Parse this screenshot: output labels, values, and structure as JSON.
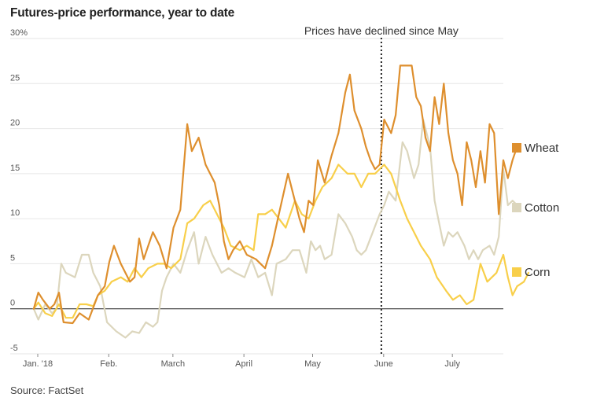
{
  "chart_data": {
    "type": "line",
    "title": "Futures-price performance, year to date",
    "source": "Source: FactSet",
    "ylim": [
      -5,
      30
    ],
    "xlim": [
      "2018-01-01",
      "2018-07-26"
    ],
    "y_ticks": [
      {
        "value": 30,
        "label": "30%"
      },
      {
        "value": 25,
        "label": "25"
      },
      {
        "value": 20,
        "label": "20"
      },
      {
        "value": 15,
        "label": "15"
      },
      {
        "value": 10,
        "label": "10"
      },
      {
        "value": 5,
        "label": "5"
      },
      {
        "value": 0,
        "label": "0"
      },
      {
        "value": -5,
        "label": "-5"
      }
    ],
    "x_ticks": [
      {
        "date": "2018-01-01",
        "label": "Jan. '18"
      },
      {
        "date": "2018-02-01",
        "label": "Feb."
      },
      {
        "date": "2018-03-01",
        "label": "March"
      },
      {
        "date": "2018-04-01",
        "label": "April"
      },
      {
        "date": "2018-05-01",
        "label": "May"
      },
      {
        "date": "2018-06-01",
        "label": "June"
      },
      {
        "date": "2018-07-01",
        "label": "July"
      }
    ],
    "grid": "horizontal",
    "legend_placement": "right",
    "annotation": {
      "date": "2018-05-31",
      "text": "Prices have declined since May"
    },
    "series": [
      {
        "name": "Wheat",
        "color": "#de8f2e",
        "points": [
          [
            "2018-01-02",
            0
          ],
          [
            "2018-01-04",
            1.8
          ],
          [
            "2018-01-06",
            1
          ],
          [
            "2018-01-09",
            0
          ],
          [
            "2018-01-11",
            0.5
          ],
          [
            "2018-01-13",
            1.8
          ],
          [
            "2018-01-15",
            -1.5
          ],
          [
            "2018-01-19",
            -1.6
          ],
          [
            "2018-01-22",
            -0.5
          ],
          [
            "2018-01-26",
            -1.2
          ],
          [
            "2018-01-30",
            1.5
          ],
          [
            "2018-02-02",
            2.5
          ],
          [
            "2018-02-04",
            5.2
          ],
          [
            "2018-02-06",
            7
          ],
          [
            "2018-02-09",
            5
          ],
          [
            "2018-02-13",
            3
          ],
          [
            "2018-02-15",
            3.5
          ],
          [
            "2018-02-17",
            7.8
          ],
          [
            "2018-02-19",
            5.5
          ],
          [
            "2018-02-21",
            7
          ],
          [
            "2018-02-23",
            8.5
          ],
          [
            "2018-02-26",
            7
          ],
          [
            "2018-03-01",
            4.5
          ],
          [
            "2018-03-04",
            9
          ],
          [
            "2018-03-07",
            11
          ],
          [
            "2018-03-10",
            20.5
          ],
          [
            "2018-03-12",
            17.5
          ],
          [
            "2018-03-15",
            19
          ],
          [
            "2018-03-18",
            16
          ],
          [
            "2018-03-20",
            15
          ],
          [
            "2018-03-22",
            14
          ],
          [
            "2018-03-24",
            11.5
          ],
          [
            "2018-03-26",
            7.5
          ],
          [
            "2018-03-28",
            5.5
          ],
          [
            "2018-03-30",
            6.5
          ],
          [
            "2018-04-02",
            7.5
          ],
          [
            "2018-04-05",
            6
          ],
          [
            "2018-04-09",
            5.5
          ],
          [
            "2018-04-13",
            4.5
          ],
          [
            "2018-04-16",
            7
          ],
          [
            "2018-04-19",
            10.5
          ],
          [
            "2018-04-23",
            15
          ],
          [
            "2018-04-25",
            13
          ],
          [
            "2018-04-28",
            10
          ],
          [
            "2018-04-30",
            8.5
          ],
          [
            "2018-05-02",
            12
          ],
          [
            "2018-05-04",
            11.5
          ],
          [
            "2018-05-06",
            16.5
          ],
          [
            "2018-05-09",
            14
          ],
          [
            "2018-05-12",
            17
          ],
          [
            "2018-05-15",
            19.5
          ],
          [
            "2018-05-18",
            24
          ],
          [
            "2018-05-20",
            26
          ],
          [
            "2018-05-22",
            22
          ],
          [
            "2018-05-25",
            20
          ],
          [
            "2018-05-27",
            18
          ],
          [
            "2018-05-29",
            16.5
          ],
          [
            "2018-05-31",
            15.5
          ],
          [
            "2018-06-02",
            16
          ],
          [
            "2018-06-04",
            21
          ],
          [
            "2018-06-07",
            19.5
          ],
          [
            "2018-06-09",
            21.5
          ],
          [
            "2018-06-11",
            27
          ],
          [
            "2018-06-16",
            27
          ],
          [
            "2018-06-18",
            23.5
          ],
          [
            "2018-06-20",
            22.5
          ],
          [
            "2018-06-22",
            19
          ],
          [
            "2018-06-24",
            17.5
          ],
          [
            "2018-06-26",
            23.5
          ],
          [
            "2018-06-28",
            20.5
          ],
          [
            "2018-06-30",
            25
          ],
          [
            "2018-07-02",
            19.5
          ],
          [
            "2018-07-04",
            16.5
          ],
          [
            "2018-07-06",
            15
          ],
          [
            "2018-07-08",
            11.5
          ],
          [
            "2018-07-10",
            18.5
          ],
          [
            "2018-07-12",
            16.5
          ],
          [
            "2018-07-14",
            13.5
          ],
          [
            "2018-07-16",
            17.5
          ],
          [
            "2018-07-18",
            14
          ],
          [
            "2018-07-20",
            20.5
          ],
          [
            "2018-07-22",
            19.5
          ],
          [
            "2018-07-24",
            10.5
          ],
          [
            "2018-07-26",
            16.5
          ],
          [
            "2018-07-28",
            14.5
          ],
          [
            "2018-07-30",
            16.5
          ],
          [
            "2018-08-01",
            18
          ]
        ]
      },
      {
        "name": "Cotton",
        "color": "#dcd6bd",
        "points": [
          [
            "2018-01-02",
            0
          ],
          [
            "2018-01-04",
            -1.2
          ],
          [
            "2018-01-07",
            0.5
          ],
          [
            "2018-01-10",
            -0.5
          ],
          [
            "2018-01-12",
            0
          ],
          [
            "2018-01-14",
            5
          ],
          [
            "2018-01-16",
            4
          ],
          [
            "2018-01-20",
            3.5
          ],
          [
            "2018-01-23",
            6
          ],
          [
            "2018-01-26",
            6
          ],
          [
            "2018-01-28",
            4
          ],
          [
            "2018-01-31",
            2.5
          ],
          [
            "2018-02-03",
            -1.5
          ],
          [
            "2018-02-07",
            -2.5
          ],
          [
            "2018-02-11",
            -3.2
          ],
          [
            "2018-02-14",
            -2.5
          ],
          [
            "2018-02-17",
            -2.7
          ],
          [
            "2018-02-20",
            -1.5
          ],
          [
            "2018-02-23",
            -2
          ],
          [
            "2018-02-25",
            -1.5
          ],
          [
            "2018-02-27",
            2
          ],
          [
            "2018-03-01",
            3.5
          ],
          [
            "2018-03-04",
            5
          ],
          [
            "2018-03-07",
            4
          ],
          [
            "2018-03-10",
            6.5
          ],
          [
            "2018-03-13",
            8.5
          ],
          [
            "2018-03-15",
            5
          ],
          [
            "2018-03-18",
            8
          ],
          [
            "2018-03-21",
            6
          ],
          [
            "2018-03-25",
            4
          ],
          [
            "2018-03-28",
            4.5
          ],
          [
            "2018-03-31",
            4
          ],
          [
            "2018-04-04",
            3.5
          ],
          [
            "2018-04-07",
            5.5
          ],
          [
            "2018-04-10",
            3.5
          ],
          [
            "2018-04-13",
            4
          ],
          [
            "2018-04-16",
            1.5
          ],
          [
            "2018-04-18",
            5
          ],
          [
            "2018-04-22",
            5.5
          ],
          [
            "2018-04-25",
            6.5
          ],
          [
            "2018-04-28",
            6.5
          ],
          [
            "2018-05-01",
            4
          ],
          [
            "2018-05-03",
            7.5
          ],
          [
            "2018-05-05",
            6.5
          ],
          [
            "2018-05-07",
            7
          ],
          [
            "2018-05-09",
            5.5
          ],
          [
            "2018-05-12",
            6
          ],
          [
            "2018-05-15",
            10.5
          ],
          [
            "2018-05-18",
            9.5
          ],
          [
            "2018-05-21",
            8
          ],
          [
            "2018-05-23",
            6.5
          ],
          [
            "2018-05-25",
            6
          ],
          [
            "2018-05-27",
            6.5
          ],
          [
            "2018-05-30",
            8.5
          ],
          [
            "2018-06-02",
            10.5
          ],
          [
            "2018-06-04",
            11.5
          ],
          [
            "2018-06-06",
            13
          ],
          [
            "2018-06-09",
            12
          ],
          [
            "2018-06-12",
            18.5
          ],
          [
            "2018-06-14",
            17.5
          ],
          [
            "2018-06-17",
            14.5
          ],
          [
            "2018-06-19",
            16
          ],
          [
            "2018-06-21",
            21
          ],
          [
            "2018-06-24",
            18
          ],
          [
            "2018-06-26",
            12
          ],
          [
            "2018-06-28",
            9.5
          ],
          [
            "2018-06-30",
            7
          ],
          [
            "2018-07-02",
            8.5
          ],
          [
            "2018-07-04",
            8
          ],
          [
            "2018-07-06",
            8.5
          ],
          [
            "2018-07-09",
            7
          ],
          [
            "2018-07-11",
            5.5
          ],
          [
            "2018-07-13",
            6.5
          ],
          [
            "2018-07-15",
            5.5
          ],
          [
            "2018-07-17",
            6.5
          ],
          [
            "2018-07-20",
            7
          ],
          [
            "2018-07-22",
            6
          ],
          [
            "2018-07-24",
            8
          ],
          [
            "2018-07-26",
            15.5
          ],
          [
            "2018-07-28",
            11.5
          ],
          [
            "2018-07-30",
            12
          ],
          [
            "2018-08-01",
            11.5
          ]
        ]
      },
      {
        "name": "Corn",
        "color": "#f8cf4a",
        "points": [
          [
            "2018-01-02",
            0
          ],
          [
            "2018-01-04",
            0.7
          ],
          [
            "2018-01-07",
            -0.5
          ],
          [
            "2018-01-10",
            -0.8
          ],
          [
            "2018-01-13",
            0.5
          ],
          [
            "2018-01-16",
            -1
          ],
          [
            "2018-01-19",
            -1
          ],
          [
            "2018-01-22",
            0.5
          ],
          [
            "2018-01-25",
            0.5
          ],
          [
            "2018-01-28",
            0.3
          ],
          [
            "2018-01-30",
            1.5
          ],
          [
            "2018-02-02",
            2
          ],
          [
            "2018-02-05",
            3
          ],
          [
            "2018-02-09",
            3.5
          ],
          [
            "2018-02-12",
            3
          ],
          [
            "2018-02-15",
            4.5
          ],
          [
            "2018-02-18",
            3.5
          ],
          [
            "2018-02-21",
            4.5
          ],
          [
            "2018-02-25",
            5
          ],
          [
            "2018-02-28",
            5
          ],
          [
            "2018-03-03",
            4.5
          ],
          [
            "2018-03-07",
            5.5
          ],
          [
            "2018-03-10",
            9.5
          ],
          [
            "2018-03-13",
            10
          ],
          [
            "2018-03-17",
            11.5
          ],
          [
            "2018-03-20",
            12
          ],
          [
            "2018-03-23",
            10.5
          ],
          [
            "2018-03-26",
            9
          ],
          [
            "2018-03-29",
            7
          ],
          [
            "2018-04-02",
            6.5
          ],
          [
            "2018-04-05",
            7
          ],
          [
            "2018-04-08",
            6.5
          ],
          [
            "2018-04-10",
            10.5
          ],
          [
            "2018-04-13",
            10.5
          ],
          [
            "2018-04-16",
            11
          ],
          [
            "2018-04-19",
            10
          ],
          [
            "2018-04-22",
            9
          ],
          [
            "2018-04-26",
            12
          ],
          [
            "2018-04-29",
            10.5
          ],
          [
            "2018-05-02",
            10
          ],
          [
            "2018-05-05",
            12
          ],
          [
            "2018-05-08",
            13.5
          ],
          [
            "2018-05-12",
            14.5
          ],
          [
            "2018-05-15",
            16
          ],
          [
            "2018-05-19",
            15
          ],
          [
            "2018-05-22",
            15
          ],
          [
            "2018-05-25",
            13.5
          ],
          [
            "2018-05-28",
            15
          ],
          [
            "2018-05-31",
            15
          ],
          [
            "2018-06-04",
            16
          ],
          [
            "2018-06-07",
            15
          ],
          [
            "2018-06-11",
            12
          ],
          [
            "2018-06-14",
            10
          ],
          [
            "2018-06-17",
            8.5
          ],
          [
            "2018-06-20",
            7
          ],
          [
            "2018-06-24",
            5.5
          ],
          [
            "2018-06-27",
            3.5
          ],
          [
            "2018-07-01",
            2
          ],
          [
            "2018-07-04",
            1
          ],
          [
            "2018-07-07",
            1.5
          ],
          [
            "2018-07-10",
            0.5
          ],
          [
            "2018-07-13",
            1
          ],
          [
            "2018-07-16",
            5
          ],
          [
            "2018-07-19",
            3
          ],
          [
            "2018-07-23",
            4
          ],
          [
            "2018-07-26",
            6
          ],
          [
            "2018-07-28",
            3.5
          ],
          [
            "2018-07-30",
            1.5
          ],
          [
            "2018-08-01",
            2.5
          ],
          [
            "2018-08-04",
            3
          ],
          [
            "2018-08-06",
            4
          ]
        ]
      }
    ]
  }
}
